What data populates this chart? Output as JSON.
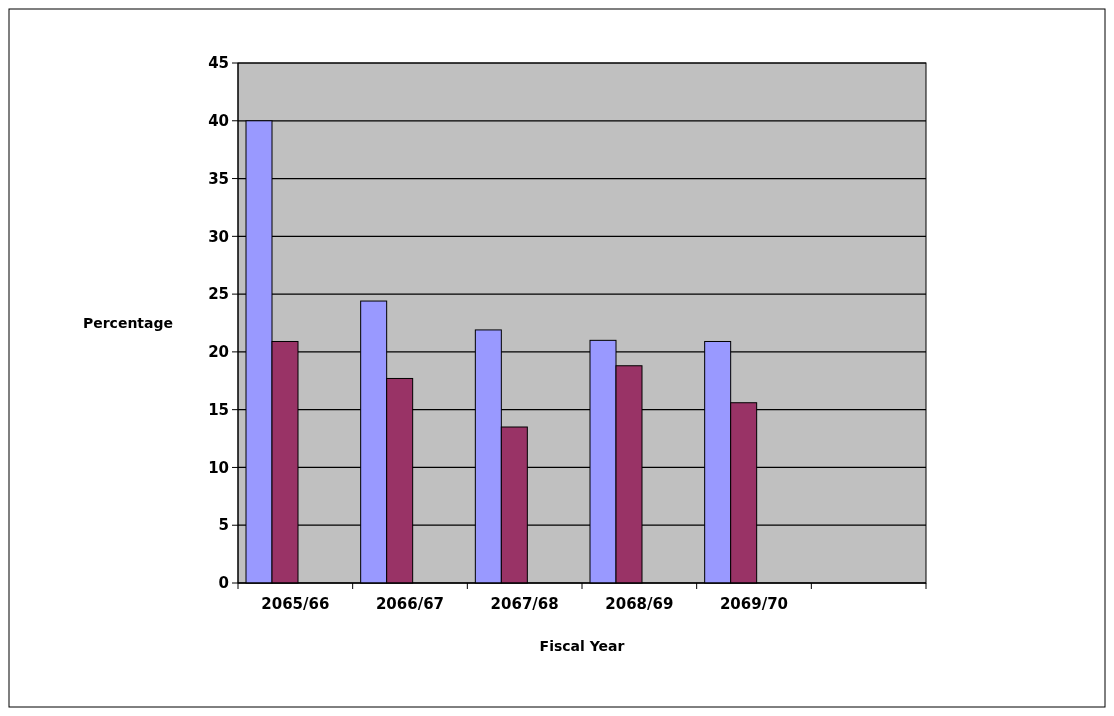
{
  "chart_data": {
    "type": "bar",
    "xlabel": "Fiscal Year",
    "ylabel": "Percentage",
    "categories": [
      "2065/66",
      "2066/67",
      "2067/68",
      "2068/69",
      "2069/70",
      null
    ],
    "series": [
      {
        "color": "#9999ff",
        "values": [
          40,
          24.4,
          21.9,
          21,
          20.9,
          null
        ]
      },
      {
        "color": "#993366",
        "values": [
          20.9,
          17.7,
          13.5,
          18.8,
          15.6,
          null
        ]
      }
    ],
    "ylim": [
      0,
      45
    ],
    "yticks": [
      0,
      5,
      10,
      15,
      20,
      25,
      30,
      35,
      40,
      45
    ],
    "grid": "y"
  }
}
